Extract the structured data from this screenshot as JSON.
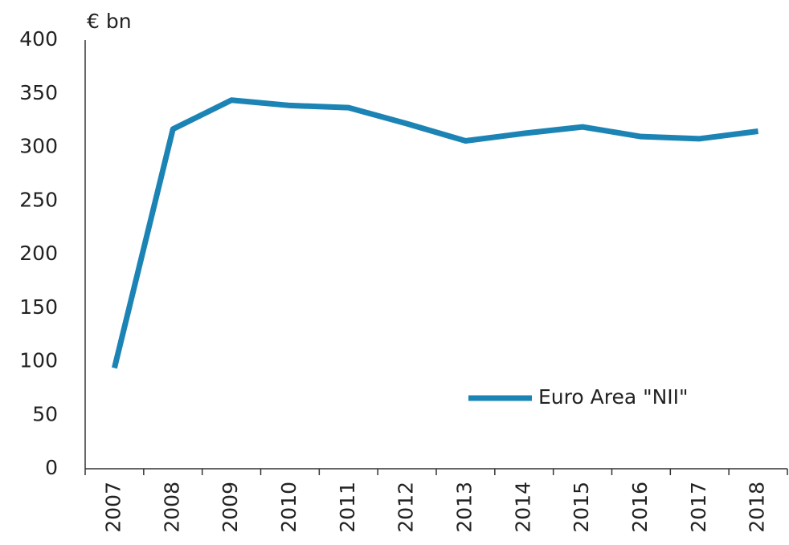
{
  "chart_data": {
    "type": "line",
    "y_axis_label": "€ bn",
    "categories": [
      "2007",
      "2008",
      "2009",
      "2010",
      "2011",
      "2012",
      "2013",
      "2014",
      "2015",
      "2016",
      "2017",
      "2018"
    ],
    "series": [
      {
        "name": "Euro Area \"NII\"",
        "color": "#1b84b5",
        "values": [
          94,
          317,
          344,
          339,
          337,
          322,
          306,
          313,
          319,
          310,
          308,
          315
        ]
      }
    ],
    "ylim": [
      0,
      400
    ],
    "yticks": [
      0,
      50,
      100,
      150,
      200,
      250,
      300,
      350,
      400
    ],
    "grid": false,
    "legend": "lower right"
  }
}
